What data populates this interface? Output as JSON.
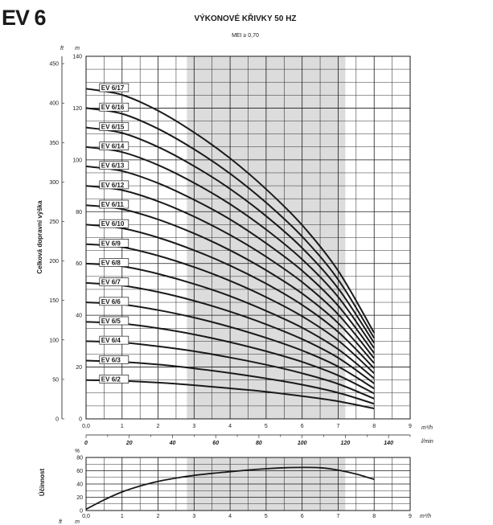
{
  "header": {
    "model": "EV 6",
    "title": "VÝKONOVÉ KŘIVKY 50 HZ",
    "subtitle": "MEI ≥ 0,70"
  },
  "chart_data": [
    {
      "type": "line",
      "name": "head",
      "ylabel": "Celková dopravní výška",
      "units": {
        "left": "ft",
        "right": "m",
        "x": "m³/h",
        "x2": "l/min"
      },
      "xlim": [
        0,
        9
      ],
      "ylim": [
        0,
        140
      ],
      "ft_lim": [
        0,
        459.3
      ],
      "x2_lim": [
        0,
        150
      ],
      "x_ticks": [
        "0,0",
        "1",
        "2",
        "3",
        "4",
        "5",
        "6",
        "7",
        "8",
        "9"
      ],
      "x2_ticks": [
        "0",
        "20",
        "40",
        "60",
        "80",
        "100",
        "120",
        "140"
      ],
      "y_ticks": [
        "0",
        "20",
        "40",
        "60",
        "80",
        "100",
        "120",
        "140"
      ],
      "ft_ticks": [
        "0",
        "50",
        "100",
        "150",
        "200",
        "250",
        "300",
        "350",
        "400",
        "450"
      ],
      "shaded_range": [
        2.8,
        7.2
      ],
      "x": [
        0,
        1,
        2,
        3,
        4,
        5,
        6,
        7,
        8
      ],
      "series": [
        {
          "name": "EV 6/2",
          "values": [
            15,
            14.7,
            14.0,
            13.0,
            11.8,
            10.5,
            8.8,
            6.8,
            4.0
          ]
        },
        {
          "name": "EV 6/3",
          "values": [
            22.5,
            22.0,
            21.0,
            19.5,
            17.7,
            15.6,
            13.2,
            10.1,
            5.8
          ]
        },
        {
          "name": "EV 6/4",
          "values": [
            30,
            29.5,
            28.0,
            26.1,
            23.7,
            20.9,
            17.6,
            13.5,
            7.8
          ]
        },
        {
          "name": "EV 6/5",
          "values": [
            37.5,
            36.8,
            35.0,
            32.6,
            29.6,
            26.1,
            22.0,
            16.8,
            9.8
          ]
        },
        {
          "name": "EV 6/6",
          "values": [
            45,
            44.2,
            42.0,
            39.1,
            35.5,
            31.3,
            26.4,
            20.2,
            11.7
          ]
        },
        {
          "name": "EV 6/7",
          "values": [
            52.5,
            51.5,
            49.0,
            45.6,
            41.4,
            36.5,
            30.8,
            23.6,
            13.7
          ]
        },
        {
          "name": "EV 6/8",
          "values": [
            60,
            58.9,
            56.0,
            52.1,
            47.4,
            41.7,
            35.2,
            26.9,
            15.6
          ]
        },
        {
          "name": "EV 6/9",
          "values": [
            67.5,
            66.3,
            63.0,
            58.6,
            53.3,
            47.0,
            39.6,
            30.3,
            17.6
          ]
        },
        {
          "name": "EV 6/10",
          "values": [
            75,
            73.6,
            70.0,
            65.1,
            59.2,
            52.2,
            44.0,
            33.6,
            19.5
          ]
        },
        {
          "name": "EV 6/11",
          "values": [
            82.5,
            81.0,
            77.0,
            71.6,
            65.1,
            57.4,
            48.4,
            37.0,
            21.5
          ]
        },
        {
          "name": "EV 6/12",
          "values": [
            90,
            88.3,
            84.0,
            78.1,
            71.0,
            62.6,
            52.8,
            40.4,
            23.4
          ]
        },
        {
          "name": "EV 6/13",
          "values": [
            97.5,
            95.7,
            91.0,
            84.6,
            77.0,
            67.8,
            57.2,
            43.7,
            25.4
          ]
        },
        {
          "name": "EV 6/14",
          "values": [
            105,
            103.0,
            98.0,
            91.1,
            82.9,
            73.1,
            61.6,
            47.1,
            27.3
          ]
        },
        {
          "name": "EV 6/15",
          "values": [
            112.5,
            110.4,
            105.0,
            97.6,
            88.8,
            78.3,
            66.0,
            50.4,
            29.3
          ]
        },
        {
          "name": "EV 6/16",
          "values": [
            120,
            117.8,
            112.0,
            104.1,
            94.7,
            83.5,
            70.4,
            53.8,
            31.2
          ]
        },
        {
          "name": "EV 6/17",
          "values": [
            127.5,
            125.1,
            119.0,
            110.6,
            100.6,
            88.7,
            74.8,
            57.2,
            33.2
          ]
        }
      ]
    },
    {
      "type": "line",
      "name": "efficiency",
      "ylabel": "Účinnost",
      "unit": "%",
      "unit_x": "m³/h",
      "xlim": [
        0,
        9
      ],
      "ylim": [
        0,
        80
      ],
      "x_ticks": [
        "0,0",
        "1",
        "2",
        "3",
        "4",
        "5",
        "6",
        "7",
        "8",
        "9"
      ],
      "y_ticks": [
        "0",
        "20",
        "40",
        "60",
        "80"
      ],
      "shaded_range": [
        2.8,
        7.2
      ],
      "x": [
        0,
        0.5,
        1,
        1.5,
        2,
        2.5,
        3,
        3.5,
        4,
        4.5,
        5,
        5.5,
        6,
        6.5,
        7,
        7.5,
        8
      ],
      "values": [
        2,
        16,
        28,
        37,
        44,
        49,
        53,
        56,
        58.5,
        61,
        63,
        64.5,
        65,
        64.5,
        61,
        55,
        47
      ]
    }
  ],
  "footer": {
    "units": [
      "ft",
      "m"
    ]
  }
}
